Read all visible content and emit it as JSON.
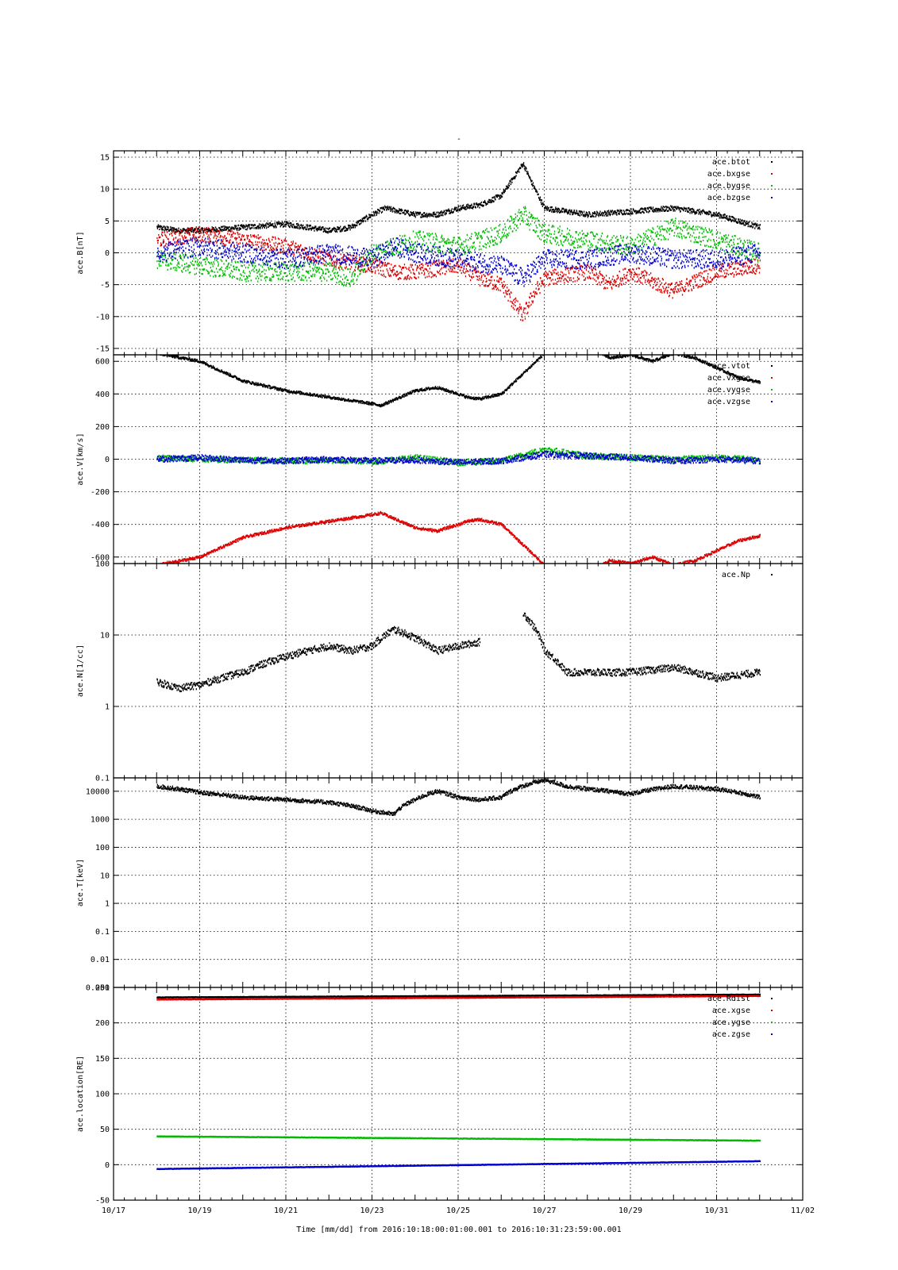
{
  "figure": {
    "title": "-",
    "footer": "Time [mm/dd]  from 2016:10:18:00:01:00.001  to  2016:10:31:23:59:00.001"
  },
  "chart_data": [
    {
      "type": "scatter",
      "ylabel": "ace.B[nT]",
      "yscale": "linear",
      "ylim": [
        -16,
        16
      ],
      "yticks": [
        -15,
        -10,
        -5,
        0,
        5,
        10,
        15
      ],
      "xlim": [
        0,
        16
      ],
      "x_tick_labels": [],
      "grid": true,
      "legend_position": "top-right",
      "series": [
        {
          "name": "ace.btot",
          "color": "#000000",
          "noise": 0.4,
          "x": [
            1,
            1.5,
            2,
            3,
            4,
            5,
            5.5,
            6,
            6.3,
            7,
            7.5,
            8,
            8.5,
            9,
            9.3,
            9.5,
            9.7,
            10,
            11,
            12,
            13,
            14,
            14.5,
            15
          ],
          "y": [
            4,
            3.5,
            3.5,
            4,
            4.5,
            3.5,
            4,
            6,
            7,
            6,
            6,
            7,
            7.5,
            9,
            12,
            14,
            11,
            7,
            6,
            6.5,
            7,
            6,
            5,
            4
          ]
        },
        {
          "name": "ace.bxgse",
          "color": "#dd0000",
          "noise": 1.2,
          "x": [
            1,
            2,
            3,
            4,
            5,
            6,
            6.5,
            7,
            8,
            8.5,
            9,
            9.3,
            9.5,
            9.7,
            10,
            11,
            11.5,
            12,
            13,
            14,
            15
          ],
          "y": [
            2,
            3,
            2,
            1,
            -1,
            -2,
            -3,
            -3,
            -2,
            -4,
            -5,
            -8,
            -10,
            -7,
            -4,
            -3,
            -5,
            -3,
            -6,
            -3,
            -2
          ]
        },
        {
          "name": "ace.bygse",
          "color": "#00bb00",
          "noise": 1.5,
          "x": [
            1,
            2,
            3,
            4,
            5,
            5.5,
            6,
            7,
            8,
            9,
            9.5,
            10,
            11,
            12,
            13,
            14,
            15
          ],
          "y": [
            -1,
            -2,
            -3,
            -3,
            -3,
            -4,
            0,
            2,
            1,
            3,
            6,
            3,
            2,
            1,
            4,
            2,
            0
          ]
        },
        {
          "name": "ace.bzgse",
          "color": "#0000cc",
          "noise": 1.5,
          "x": [
            1,
            2,
            3,
            4,
            5,
            6,
            6.5,
            7,
            8,
            9,
            9.5,
            10,
            11,
            12,
            13,
            14,
            15
          ],
          "y": [
            0,
            1,
            0,
            -1,
            0,
            -1,
            1,
            0,
            -1,
            -2,
            -4,
            -1,
            -1,
            0,
            -1,
            -1,
            0
          ]
        }
      ]
    },
    {
      "type": "scatter",
      "ylabel": "ace.V[km/s]",
      "yscale": "linear",
      "ylim": [
        -640,
        640
      ],
      "yticks": [
        -600,
        -400,
        -200,
        0,
        200,
        400,
        600
      ],
      "xlim": [
        0,
        16
      ],
      "x_tick_labels": [],
      "grid": true,
      "legend_position": "top-right",
      "series": [
        {
          "name": "ace.vtot",
          "color": "#000000",
          "noise": 8,
          "x": [
            1,
            2,
            3,
            4,
            5,
            5.5,
            6,
            6.2,
            7,
            7.5,
            8,
            8.2,
            8.5,
            9,
            10,
            10.5,
            11,
            11.5,
            12,
            12.5,
            13,
            13.5,
            14,
            14.5,
            15
          ],
          "y": [
            650,
            600,
            480,
            420,
            380,
            360,
            340,
            330,
            420,
            440,
            400,
            380,
            370,
            400,
            650,
            680,
            700,
            620,
            640,
            600,
            650,
            620,
            560,
            500,
            470
          ]
        },
        {
          "name": "ace.vxgse",
          "color": "#dd0000",
          "noise": 8,
          "x": [
            1,
            2,
            3,
            4,
            5,
            5.5,
            6,
            6.2,
            7,
            7.5,
            8,
            8.2,
            8.5,
            9,
            10,
            10.5,
            11,
            11.5,
            12,
            12.5,
            13,
            13.5,
            14,
            14.5,
            15
          ],
          "y": [
            -650,
            -600,
            -480,
            -420,
            -380,
            -360,
            -340,
            -330,
            -420,
            -440,
            -400,
            -380,
            -370,
            -400,
            -650,
            -680,
            -700,
            -620,
            -640,
            -600,
            -650,
            -620,
            -560,
            -500,
            -470
          ]
        },
        {
          "name": "ace.vygse",
          "color": "#00bb00",
          "noise": 18,
          "x": [
            1,
            2,
            3,
            4,
            5,
            6,
            7,
            8,
            9,
            10,
            11,
            12,
            13,
            14,
            15
          ],
          "y": [
            10,
            0,
            -5,
            -10,
            -5,
            -15,
            10,
            -20,
            -10,
            60,
            20,
            10,
            0,
            10,
            0
          ]
        },
        {
          "name": "ace.vzgse",
          "color": "#0000cc",
          "noise": 18,
          "x": [
            1,
            2,
            3,
            4,
            5,
            6,
            7,
            8,
            9,
            10,
            11,
            12,
            13,
            14,
            15
          ],
          "y": [
            0,
            10,
            -5,
            -10,
            0,
            -10,
            -5,
            -20,
            -10,
            30,
            20,
            10,
            -10,
            0,
            -10
          ]
        }
      ]
    },
    {
      "type": "scatter",
      "ylabel": "ace.N[1/cc]",
      "yscale": "log",
      "ylim": [
        0.1,
        100
      ],
      "yticks": [
        0.1,
        1,
        10,
        100
      ],
      "xlim": [
        0,
        16
      ],
      "x_tick_labels": [],
      "grid": true,
      "legend_position": "top-right",
      "series": [
        {
          "name": "ace.Np",
          "color": "#000000",
          "noise": 0.05,
          "x": [
            1,
            1.5,
            2,
            2.5,
            3,
            3.5,
            4,
            4.5,
            5,
            5.5,
            6,
            6.5,
            7,
            7.5,
            8,
            8.5,
            9,
            9.5,
            10,
            10.5,
            11,
            12,
            13,
            14,
            15
          ],
          "y": [
            2.2,
            1.8,
            2,
            2.5,
            3,
            4,
            5,
            6,
            7,
            6,
            7,
            12,
            9,
            6,
            7,
            8,
            null,
            20,
            6,
            3,
            3,
            3,
            3.5,
            2.5,
            3
          ]
        }
      ]
    },
    {
      "type": "scatter",
      "ylabel": "ace.T[keV]",
      "yscale": "log",
      "ylim": [
        0.001,
        30000
      ],
      "yticks": [
        0.001,
        0.01,
        0.1,
        1,
        10,
        100,
        1000,
        10000
      ],
      "tick_labels": [
        "0.001",
        "0.01",
        "0.1",
        "1",
        "10",
        "100",
        "1000",
        "10000"
      ],
      "xlim": [
        0,
        16
      ],
      "x_tick_labels": [],
      "grid": true,
      "legend_position": "top-right",
      "series": [
        {
          "name": "",
          "color": "#000000",
          "noise": 0.07,
          "x": [
            1,
            2,
            3,
            4,
            5,
            5.5,
            6,
            6.5,
            7,
            7.5,
            8,
            8.5,
            9,
            10,
            10.5,
            11,
            12,
            13,
            14,
            15
          ],
          "y": [
            15000,
            9000,
            6000,
            5000,
            4000,
            3000,
            2000,
            1500,
            5000,
            10000,
            6000,
            5000,
            6000,
            25000,
            15000,
            12000,
            8000,
            15000,
            12000,
            6000
          ]
        }
      ]
    },
    {
      "type": "scatter",
      "ylabel": "ace.location[RE]",
      "yscale": "linear",
      "ylim": [
        -50,
        250
      ],
      "yticks": [
        -50,
        0,
        50,
        100,
        150,
        200,
        250
      ],
      "tick_labels": [
        "-50",
        "0",
        "50",
        "100",
        "150",
        "200",
        "250"
      ],
      "xlim": [
        0,
        16
      ],
      "x_tick_labels": [
        "10/17",
        "10/19",
        "10/21",
        "10/23",
        "10/25",
        "10/27",
        "10/29",
        "10/31",
        "11/02"
      ],
      "grid": true,
      "legend_position": "top-right",
      "series": [
        {
          "name": "ace.Rdist",
          "color": "#000000",
          "noise": 0.3,
          "x": [
            1,
            15
          ],
          "y": [
            236,
            240
          ]
        },
        {
          "name": "ace.xgse",
          "color": "#dd0000",
          "noise": 0.3,
          "x": [
            1,
            15
          ],
          "y": [
            233,
            238
          ]
        },
        {
          "name": "ace.ygse",
          "color": "#00bb00",
          "noise": 0.3,
          "x": [
            1,
            15
          ],
          "y": [
            40,
            34
          ]
        },
        {
          "name": "ace.zgse",
          "color": "#0000cc",
          "noise": 0.3,
          "x": [
            1,
            15
          ],
          "y": [
            -6,
            5
          ]
        }
      ]
    }
  ]
}
